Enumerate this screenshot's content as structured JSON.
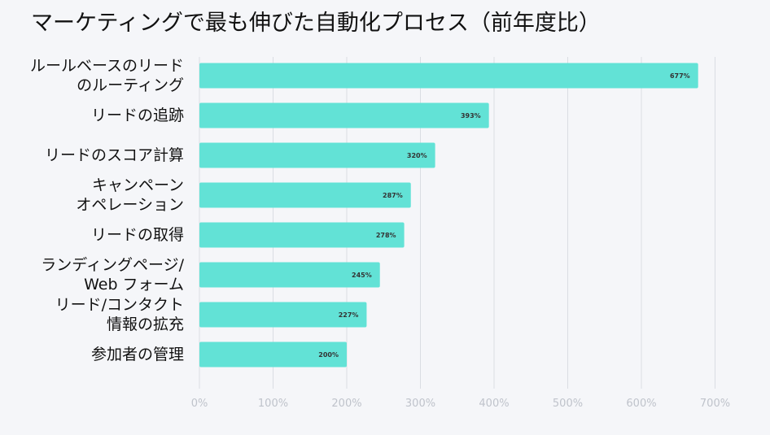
{
  "chart_data": {
    "type": "bar",
    "orientation": "horizontal",
    "title": "マーケティングで最も伸びた自動化プロセス（前年度比）",
    "categories": [
      [
        "ルールベースのリード",
        "のルーティング"
      ],
      [
        "リードの追跡"
      ],
      [
        "リードのスコア計算"
      ],
      [
        "キャンペーン",
        "オペレーション"
      ],
      [
        "リードの取得"
      ],
      [
        "ランディングページ/",
        "Web フォーム"
      ],
      [
        "リード/コンタクト",
        "情報の拡充"
      ],
      [
        "参加者の管理"
      ]
    ],
    "values": [
      677,
      393,
      320,
      287,
      278,
      245,
      227,
      200
    ],
    "data_labels": [
      "677%",
      "393%",
      "320%",
      "287%",
      "278%",
      "245%",
      "227%",
      "200%"
    ],
    "x_ticks": [
      "0%",
      "100%",
      "200%",
      "300%",
      "400%",
      "500%",
      "600%",
      "700%"
    ],
    "xlim": [
      0,
      700
    ],
    "grid": true,
    "colors": {
      "bar": "#62e2d6",
      "grid": "#dadde3",
      "tick": "#bfc3cb",
      "background": "#f5f6f9"
    }
  }
}
